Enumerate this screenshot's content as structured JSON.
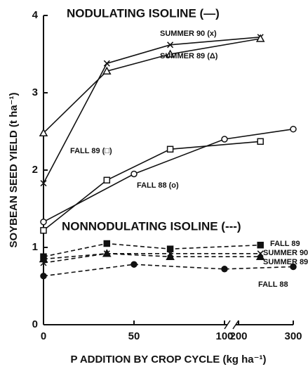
{
  "chart_data": {
    "type": "line",
    "x_label": "P ADDITION BY CROP CYCLE (kg ha⁻¹)",
    "y_label": "SOYBEAN SEED YIELD (t ha⁻¹)",
    "annotations": [
      "NODULATING ISOLINE (—)",
      "NONNODULATING ISOLINE (---)"
    ],
    "xlim": [
      0,
      300
    ],
    "xbreak": [
      100,
      200
    ],
    "xticks": [
      0,
      50,
      100,
      200,
      300
    ],
    "ylim": [
      0,
      4
    ],
    "yticks": [
      0,
      1,
      2,
      3,
      4
    ],
    "series": [
      {
        "name": "SUMMER 90 (x)",
        "color": "#111111",
        "dash": false,
        "marker": "x",
        "x": [
          0,
          35,
          70,
          240
        ],
        "values": [
          1.83,
          3.38,
          3.62,
          3.72
        ]
      },
      {
        "name": "SUMMER 89 (Δ)",
        "color": "#111111",
        "dash": false,
        "marker": "triangle-open",
        "x": [
          0,
          35,
          70,
          240
        ],
        "values": [
          2.48,
          3.28,
          3.5,
          3.7
        ]
      },
      {
        "name": "FALL 89 (□)",
        "color": "#111111",
        "dash": false,
        "marker": "square-open",
        "x": [
          0,
          35,
          70,
          240
        ],
        "values": [
          1.22,
          1.87,
          2.27,
          2.37
        ]
      },
      {
        "name": "FALL 88 (o)",
        "color": "#111111",
        "dash": false,
        "marker": "circle-open",
        "x": [
          0,
          50,
          100,
          300
        ],
        "values": [
          1.33,
          1.95,
          2.4,
          2.53
        ]
      },
      {
        "name": "FALL 89",
        "color": "#111111",
        "dash": true,
        "marker": "square",
        "x": [
          0,
          35,
          70,
          240
        ],
        "values": [
          0.88,
          1.05,
          0.98,
          1.03
        ]
      },
      {
        "name": "SUMMER 90",
        "color": "#111111",
        "dash": true,
        "marker": "x",
        "x": [
          0,
          35,
          70,
          240
        ],
        "values": [
          0.8,
          0.92,
          0.92,
          0.92
        ]
      },
      {
        "name": "SUMMER 89",
        "color": "#111111",
        "dash": true,
        "marker": "triangle",
        "x": [
          0,
          35,
          70,
          240
        ],
        "values": [
          0.85,
          0.92,
          0.88,
          0.88
        ]
      },
      {
        "name": "FALL 88",
        "color": "#111111",
        "dash": true,
        "marker": "circle",
        "x": [
          0,
          50,
          100,
          300
        ],
        "values": [
          0.63,
          0.78,
          0.72,
          0.75
        ]
      }
    ]
  }
}
